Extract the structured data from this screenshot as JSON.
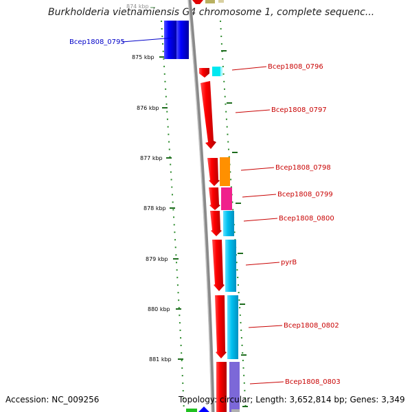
{
  "title": "Burkholderia vietnamiensis G4 chromosome 1, complete sequenc...",
  "accession": "Accession: NC_009256",
  "summary": "Topology: circular; Length: 3,652,814 bp; Genes: 3,349",
  "ticks": [
    "874 kbp",
    "875 kbp",
    "876 kbp",
    "877 kbp",
    "878 kbp",
    "879 kbp",
    "880 kbp",
    "881 kbp"
  ],
  "gene_labels": [
    {
      "text": "Bcep1808_0795",
      "color": "#0000c8"
    },
    {
      "text": "Bcep1808_0796",
      "color": "#c80000"
    },
    {
      "text": "Bcep1808_0797",
      "color": "#c80000"
    },
    {
      "text": "Bcep1808_0798",
      "color": "#c80000"
    },
    {
      "text": "Bcep1808_0799",
      "color": "#c80000"
    },
    {
      "text": "Bcep1808_0800",
      "color": "#c80000"
    },
    {
      "text": "pyrB",
      "color": "#c80000"
    },
    {
      "text": "Bcep1808_0802",
      "color": "#c80000"
    },
    {
      "text": "Bcep1808_0803",
      "color": "#c80000"
    }
  ]
}
